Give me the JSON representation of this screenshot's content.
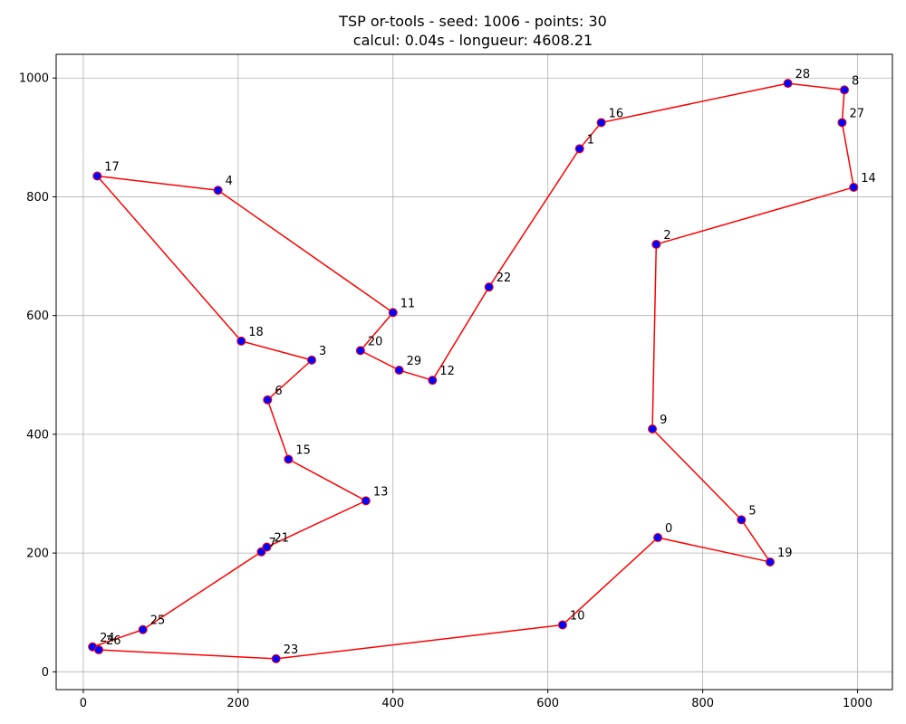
{
  "chart_data": {
    "type": "scatter",
    "title": "TSP or-tools - seed: 1006 - points: 30",
    "subtitle": "calcul: 0.04s - longueur: 4608.21",
    "xlabel": "",
    "ylabel": "",
    "xlim": [
      -35,
      1045
    ],
    "ylim": [
      -30,
      1040
    ],
    "x_ticks": [
      0,
      200,
      400,
      600,
      800,
      1000
    ],
    "y_ticks": [
      0,
      200,
      400,
      600,
      800,
      1000
    ],
    "grid": true,
    "point_color": "#0000ff",
    "edge_color": "#ff0000",
    "route_color": "#ff0000",
    "points": [
      {
        "id": "0",
        "x": 742,
        "y": 226
      },
      {
        "id": "1",
        "x": 641,
        "y": 881
      },
      {
        "id": "2",
        "x": 740,
        "y": 720
      },
      {
        "id": "3",
        "x": 295,
        "y": 525
      },
      {
        "id": "4",
        "x": 174,
        "y": 811
      },
      {
        "id": "5",
        "x": 850,
        "y": 256
      },
      {
        "id": "6",
        "x": 238,
        "y": 458
      },
      {
        "id": "7",
        "x": 230,
        "y": 202
      },
      {
        "id": "8",
        "x": 983,
        "y": 980
      },
      {
        "id": "9",
        "x": 735,
        "y": 409
      },
      {
        "id": "10",
        "x": 619,
        "y": 79
      },
      {
        "id": "11",
        "x": 400,
        "y": 605
      },
      {
        "id": "12",
        "x": 451,
        "y": 491
      },
      {
        "id": "13",
        "x": 365,
        "y": 288
      },
      {
        "id": "14",
        "x": 995,
        "y": 816
      },
      {
        "id": "15",
        "x": 265,
        "y": 358
      },
      {
        "id": "16",
        "x": 669,
        "y": 925
      },
      {
        "id": "17",
        "x": 18,
        "y": 835
      },
      {
        "id": "18",
        "x": 204,
        "y": 557
      },
      {
        "id": "19",
        "x": 887,
        "y": 185
      },
      {
        "id": "20",
        "x": 358,
        "y": 541
      },
      {
        "id": "21",
        "x": 237,
        "y": 210
      },
      {
        "id": "22",
        "x": 524,
        "y": 648
      },
      {
        "id": "23",
        "x": 249,
        "y": 22
      },
      {
        "id": "24",
        "x": 12,
        "y": 42
      },
      {
        "id": "25",
        "x": 77,
        "y": 71
      },
      {
        "id": "26",
        "x": 20,
        "y": 37
      },
      {
        "id": "27",
        "x": 980,
        "y": 925
      },
      {
        "id": "28",
        "x": 910,
        "y": 991
      },
      {
        "id": "29",
        "x": 408,
        "y": 508
      }
    ],
    "route": [
      "0",
      "19",
      "5",
      "9",
      "2",
      "14",
      "27",
      "8",
      "28",
      "16",
      "1",
      "22",
      "12",
      "29",
      "20",
      "11",
      "4",
      "17",
      "18",
      "3",
      "6",
      "15",
      "13",
      "21",
      "7",
      "25",
      "24",
      "26",
      "23",
      "10",
      "0"
    ]
  }
}
